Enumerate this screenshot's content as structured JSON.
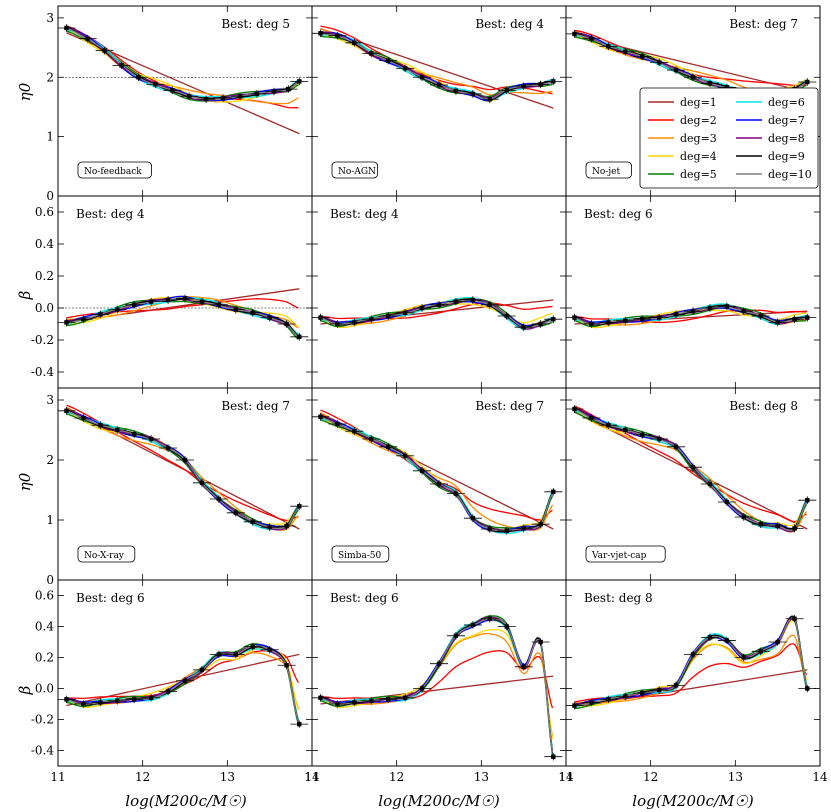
{
  "figure": {
    "xlabel": "log(M200c/M☉)",
    "ylabel_eta": "η0",
    "ylabel_beta": "β",
    "legend_entries": [
      "deg=1",
      "deg=2",
      "deg=3",
      "deg=4",
      "deg=5",
      "deg=6",
      "deg=7",
      "deg=8",
      "deg=9",
      "deg=10"
    ]
  },
  "chart_data": {
    "type": "line",
    "xlim": [
      11,
      14
    ],
    "x_ticks": [
      11,
      12,
      13,
      14
    ],
    "eta_ylim": [
      0,
      3.2
    ],
    "eta_ticks": [
      0,
      1,
      2,
      3
    ],
    "beta_ylim": [
      -0.5,
      0.7
    ],
    "beta_ticks": [
      -0.4,
      -0.2,
      0.0,
      0.2,
      0.4,
      0.6
    ],
    "series_colors": {
      "deg=1": "#a52a2a",
      "deg=2": "#ff0000",
      "deg=3": "#ff8c00",
      "deg=4": "#ffd700",
      "deg=5": "#008000",
      "deg=6": "#00e5ee",
      "deg=7": "#0000ff",
      "deg=8": "#800080",
      "deg=9": "#000000",
      "deg=10": "#808080"
    },
    "panels": [
      {
        "row": 0,
        "col": 0,
        "kind": "eta",
        "label": "No-feedback",
        "best": "Best: deg 5",
        "ref_line": 2,
        "points": [
          [
            11.1,
            2.83
          ],
          [
            11.35,
            2.65
          ],
          [
            11.55,
            2.45
          ],
          [
            11.75,
            2.2
          ],
          [
            11.95,
            2.0
          ],
          [
            12.15,
            1.88
          ],
          [
            12.35,
            1.78
          ],
          [
            12.55,
            1.68
          ],
          [
            12.75,
            1.63
          ],
          [
            12.95,
            1.65
          ],
          [
            13.15,
            1.68
          ],
          [
            13.35,
            1.72
          ],
          [
            13.55,
            1.76
          ],
          [
            13.72,
            1.8
          ],
          [
            13.85,
            1.93
          ]
        ],
        "deg1": [
          2.75,
          1.05
        ]
      },
      {
        "row": 0,
        "col": 1,
        "kind": "eta",
        "label": "No-AGN",
        "best": "Best: deg 4",
        "points": [
          [
            11.1,
            2.74
          ],
          [
            11.3,
            2.7
          ],
          [
            11.5,
            2.58
          ],
          [
            11.7,
            2.4
          ],
          [
            11.9,
            2.28
          ],
          [
            12.1,
            2.15
          ],
          [
            12.3,
            2.0
          ],
          [
            12.5,
            1.87
          ],
          [
            12.7,
            1.77
          ],
          [
            12.9,
            1.72
          ],
          [
            13.1,
            1.63
          ],
          [
            13.3,
            1.78
          ],
          [
            13.5,
            1.85
          ],
          [
            13.7,
            1.88
          ],
          [
            13.85,
            1.93
          ]
        ],
        "deg1": [
          2.82,
          1.48
        ]
      },
      {
        "row": 0,
        "col": 2,
        "kind": "eta",
        "label": "No-jet",
        "best": "Best: deg 7",
        "points": [
          [
            11.1,
            2.73
          ],
          [
            11.3,
            2.65
          ],
          [
            11.5,
            2.52
          ],
          [
            11.7,
            2.43
          ],
          [
            11.9,
            2.35
          ],
          [
            12.1,
            2.25
          ],
          [
            12.3,
            2.12
          ],
          [
            12.5,
            2.0
          ],
          [
            12.7,
            1.9
          ],
          [
            12.9,
            1.83
          ],
          [
            13.1,
            1.75
          ],
          [
            13.3,
            1.72
          ],
          [
            13.5,
            1.74
          ],
          [
            13.7,
            1.8
          ],
          [
            13.85,
            1.92
          ]
        ],
        "deg1": [
          2.7,
          1.75
        ]
      },
      {
        "row": 1,
        "col": 0,
        "kind": "beta",
        "best": "Best: deg 4",
        "ref_line": 0,
        "points": [
          [
            11.1,
            -0.09
          ],
          [
            11.3,
            -0.07
          ],
          [
            11.5,
            -0.04
          ],
          [
            11.7,
            -0.01
          ],
          [
            11.9,
            0.02
          ],
          [
            12.1,
            0.04
          ],
          [
            12.3,
            0.05
          ],
          [
            12.5,
            0.06
          ],
          [
            12.7,
            0.04
          ],
          [
            12.9,
            0.02
          ],
          [
            13.1,
            -0.01
          ],
          [
            13.3,
            -0.03
          ],
          [
            13.5,
            -0.06
          ],
          [
            13.7,
            -0.1
          ],
          [
            13.85,
            -0.18
          ]
        ],
        "deg1": [
          -0.09,
          0.12
        ]
      },
      {
        "row": 1,
        "col": 1,
        "kind": "beta",
        "best": "Best: deg 4",
        "points": [
          [
            11.1,
            -0.06
          ],
          [
            11.3,
            -0.1
          ],
          [
            11.5,
            -0.09
          ],
          [
            11.7,
            -0.07
          ],
          [
            11.9,
            -0.05
          ],
          [
            12.1,
            -0.03
          ],
          [
            12.3,
            0.0
          ],
          [
            12.5,
            0.02
          ],
          [
            12.7,
            0.04
          ],
          [
            12.9,
            0.05
          ],
          [
            13.1,
            0.02
          ],
          [
            13.3,
            -0.05
          ],
          [
            13.5,
            -0.12
          ],
          [
            13.7,
            -0.1
          ],
          [
            13.85,
            -0.07
          ]
        ],
        "deg1": [
          -0.1,
          0.05
        ]
      },
      {
        "row": 1,
        "col": 2,
        "kind": "beta",
        "best": "Best: deg 6",
        "points": [
          [
            11.1,
            -0.06
          ],
          [
            11.3,
            -0.1
          ],
          [
            11.5,
            -0.09
          ],
          [
            11.7,
            -0.08
          ],
          [
            11.9,
            -0.07
          ],
          [
            12.1,
            -0.06
          ],
          [
            12.3,
            -0.04
          ],
          [
            12.5,
            -0.02
          ],
          [
            12.7,
            0.0
          ],
          [
            12.9,
            0.01
          ],
          [
            13.1,
            -0.02
          ],
          [
            13.3,
            -0.05
          ],
          [
            13.5,
            -0.09
          ],
          [
            13.7,
            -0.07
          ],
          [
            13.85,
            -0.06
          ]
        ],
        "deg1": [
          -0.1,
          -0.02
        ]
      },
      {
        "row": 2,
        "col": 0,
        "kind": "eta",
        "label": "No-X-ray",
        "best": "Best: deg 7",
        "points": [
          [
            11.1,
            2.82
          ],
          [
            11.3,
            2.7
          ],
          [
            11.5,
            2.58
          ],
          [
            11.7,
            2.5
          ],
          [
            11.9,
            2.43
          ],
          [
            12.1,
            2.35
          ],
          [
            12.3,
            2.2
          ],
          [
            12.5,
            2.0
          ],
          [
            12.7,
            1.62
          ],
          [
            12.9,
            1.35
          ],
          [
            13.1,
            1.12
          ],
          [
            13.3,
            0.97
          ],
          [
            13.5,
            0.88
          ],
          [
            13.7,
            0.9
          ],
          [
            13.85,
            1.23
          ]
        ],
        "deg1": [
          2.85,
          0.85
        ]
      },
      {
        "row": 2,
        "col": 1,
        "kind": "eta",
        "label": "Simba-50",
        "best": "Best: deg 7",
        "points": [
          [
            11.1,
            2.72
          ],
          [
            11.3,
            2.6
          ],
          [
            11.5,
            2.48
          ],
          [
            11.7,
            2.35
          ],
          [
            11.9,
            2.22
          ],
          [
            12.1,
            2.07
          ],
          [
            12.3,
            1.82
          ],
          [
            12.5,
            1.6
          ],
          [
            12.7,
            1.44
          ],
          [
            12.9,
            1.03
          ],
          [
            13.1,
            0.85
          ],
          [
            13.3,
            0.82
          ],
          [
            13.5,
            0.86
          ],
          [
            13.7,
            0.93
          ],
          [
            13.85,
            1.47
          ]
        ],
        "deg1": [
          2.78,
          0.85
        ]
      },
      {
        "row": 2,
        "col": 2,
        "kind": "eta",
        "label": "Var-vjet-cap",
        "best": "Best: deg 8",
        "points": [
          [
            11.1,
            2.85
          ],
          [
            11.3,
            2.7
          ],
          [
            11.5,
            2.58
          ],
          [
            11.7,
            2.5
          ],
          [
            11.9,
            2.42
          ],
          [
            12.1,
            2.35
          ],
          [
            12.3,
            2.22
          ],
          [
            12.5,
            1.88
          ],
          [
            12.7,
            1.6
          ],
          [
            12.9,
            1.3
          ],
          [
            13.1,
            1.05
          ],
          [
            13.3,
            0.93
          ],
          [
            13.5,
            0.9
          ],
          [
            13.7,
            0.86
          ],
          [
            13.85,
            1.33
          ]
        ],
        "deg1": [
          2.8,
          0.85
        ]
      },
      {
        "row": 3,
        "col": 0,
        "kind": "beta",
        "best": "Best: deg 6",
        "points": [
          [
            11.1,
            -0.07
          ],
          [
            11.3,
            -0.1
          ],
          [
            11.5,
            -0.09
          ],
          [
            11.7,
            -0.08
          ],
          [
            11.9,
            -0.07
          ],
          [
            12.1,
            -0.06
          ],
          [
            12.3,
            -0.02
          ],
          [
            12.5,
            0.05
          ],
          [
            12.7,
            0.12
          ],
          [
            12.9,
            0.22
          ],
          [
            13.1,
            0.22
          ],
          [
            13.3,
            0.27
          ],
          [
            13.5,
            0.25
          ],
          [
            13.7,
            0.15
          ],
          [
            13.85,
            -0.23
          ]
        ],
        "deg1": [
          -0.11,
          0.22
        ]
      },
      {
        "row": 3,
        "col": 1,
        "kind": "beta",
        "best": "Best: deg 6",
        "points": [
          [
            11.1,
            -0.06
          ],
          [
            11.3,
            -0.1
          ],
          [
            11.5,
            -0.09
          ],
          [
            11.7,
            -0.08
          ],
          [
            11.9,
            -0.07
          ],
          [
            12.1,
            -0.06
          ],
          [
            12.3,
            0.0
          ],
          [
            12.5,
            0.16
          ],
          [
            12.7,
            0.34
          ],
          [
            12.9,
            0.41
          ],
          [
            13.1,
            0.45
          ],
          [
            13.3,
            0.4
          ],
          [
            13.5,
            0.14
          ],
          [
            13.7,
            0.3
          ],
          [
            13.85,
            -0.44
          ]
        ],
        "deg1": [
          -0.1,
          0.08
        ]
      },
      {
        "row": 3,
        "col": 2,
        "kind": "beta",
        "best": "Best: deg 8",
        "points": [
          [
            11.1,
            -0.11
          ],
          [
            11.3,
            -0.09
          ],
          [
            11.5,
            -0.07
          ],
          [
            11.7,
            -0.05
          ],
          [
            11.9,
            -0.03
          ],
          [
            12.1,
            -0.01
          ],
          [
            12.3,
            0.02
          ],
          [
            12.5,
            0.22
          ],
          [
            12.7,
            0.33
          ],
          [
            12.9,
            0.31
          ],
          [
            13.1,
            0.2
          ],
          [
            13.3,
            0.24
          ],
          [
            13.5,
            0.3
          ],
          [
            13.7,
            0.45
          ],
          [
            13.85,
            0.0
          ]
        ],
        "deg1": [
          -0.12,
          0.12
        ]
      }
    ]
  }
}
